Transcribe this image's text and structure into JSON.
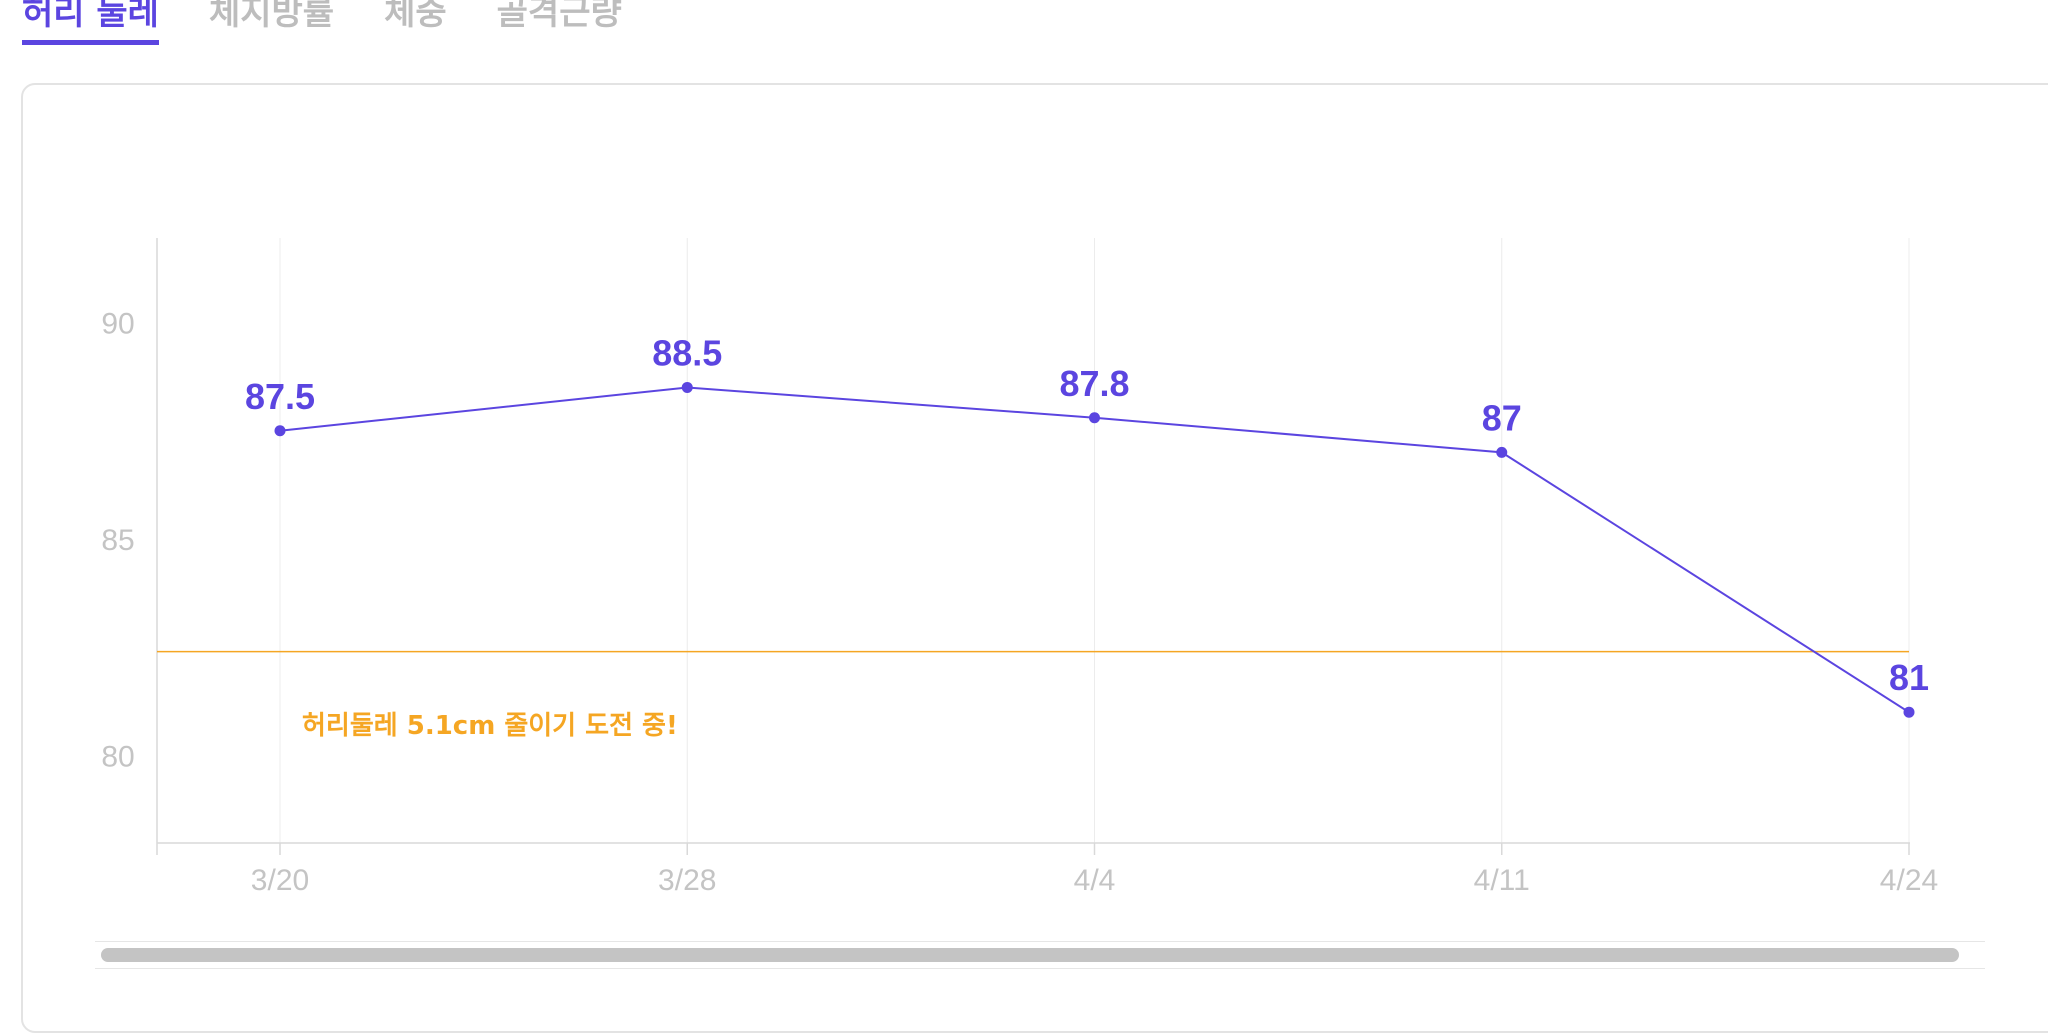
{
  "tabs": [
    {
      "label": "허리 둘레",
      "active": true
    },
    {
      "label": "체지방률",
      "active": false
    },
    {
      "label": "체중",
      "active": false
    },
    {
      "label": "골격근량",
      "active": false
    }
  ],
  "colors": {
    "accent": "#5b45e0",
    "goal": "#f5a623",
    "axis_text": "#c4c4c4",
    "grid": "#ececec",
    "tab_inactive": "#bdbdbd"
  },
  "chart_data": {
    "type": "line",
    "categories": [
      "3/20",
      "3/28",
      "4/4",
      "4/11",
      "4/24"
    ],
    "series": [
      {
        "values": [
          87.5,
          88.5,
          87.8,
          87,
          81
        ]
      }
    ],
    "data_labels": [
      "87.5",
      "88.5",
      "87.8",
      "87",
      "81"
    ],
    "y_ticks": [
      90,
      85,
      80
    ],
    "y_tick_labels": [
      "90",
      "85",
      "80"
    ],
    "ylim": [
      78,
      92
    ],
    "grid": "vertical",
    "goal_line": {
      "value": 82.4,
      "label": "허리둘레 5.1cm 줄이기 도전 중!"
    }
  }
}
